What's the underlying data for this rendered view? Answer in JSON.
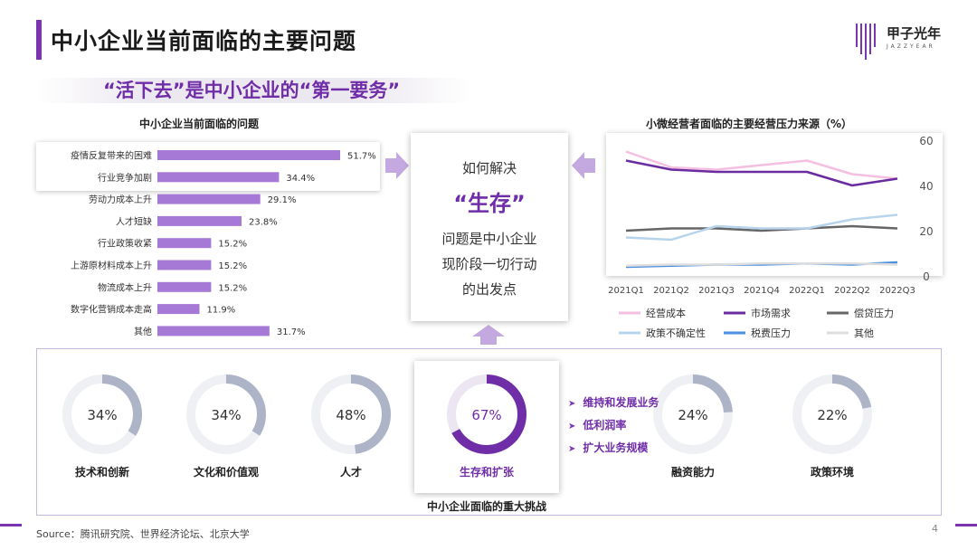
{
  "header": {
    "title": "中小企业当前面临的主要问题",
    "subtitle": "“活下去”是中小企业的“第一要务”",
    "logo_text": "甲子光年",
    "logo_sub": "JAZZYEAR"
  },
  "left_chart": {
    "title": "中小企业当前面临的问题"
  },
  "center": {
    "line1": "如何解决",
    "big": "“生存”",
    "line2": "问题是中小企业",
    "line3": "现阶段一切行动",
    "line4": "的出发点"
  },
  "right_chart": {
    "title": "小微经营者面临的主要经营压力来源（%）"
  },
  "bottom": {
    "caption": "中小企业面临的重大挑战",
    "donuts": [
      {
        "value": 34,
        "text": "34%",
        "label": "技术和创新"
      },
      {
        "value": 34,
        "text": "34%",
        "label": "文化和价值观"
      },
      {
        "value": 48,
        "text": "48%",
        "label": "人才"
      },
      {
        "value": 67,
        "text": "67%",
        "label": "生存和扩张"
      },
      {
        "value": 24,
        "text": "24%",
        "label": "融资能力"
      },
      {
        "value": 22,
        "text": "22%",
        "label": "政策环境"
      }
    ],
    "bullets": [
      "维持和发展业务",
      "低利润率",
      "扩大业务规模"
    ]
  },
  "footer": {
    "source": "Source：腾讯研究院、世界经济论坛、北京大学",
    "page": "4"
  },
  "colors": {
    "accent": "#7b35b0",
    "bar": "#a779d6",
    "donut_gray": "#adb4c8",
    "donut_highlight": "#6f2da8"
  },
  "chart_data": [
    {
      "type": "bar",
      "orientation": "horizontal",
      "title": "中小企业当前面临的问题",
      "categories": [
        "疫情反复带来的困难",
        "行业竞争加剧",
        "劳动力成本上升",
        "人才短缺",
        "行业政策收紧",
        "上游原材料成本上升",
        "物流成本上升",
        "数字化营销成本走高",
        "其他"
      ],
      "values": [
        51.7,
        34.4,
        29.1,
        23.8,
        15.2,
        15.2,
        15.2,
        11.9,
        31.7
      ],
      "value_labels": [
        "51.7%",
        "34.4%",
        "29.1%",
        "23.8%",
        "15.2%",
        "15.2%",
        "15.2%",
        "11.9%",
        "31.7%"
      ]
    },
    {
      "type": "line",
      "title": "小微经营者面临的主要经营压力来源（%）",
      "x": [
        "2021Q1",
        "2021Q2",
        "2021Q3",
        "2021Q4",
        "2022Q1",
        "2022Q2",
        "2022Q3"
      ],
      "y_ticks": [
        "0",
        "20",
        "40",
        "60"
      ],
      "ylim": [
        0,
        60
      ],
      "legend_position": "bottom",
      "series": [
        {
          "name": "经营成本",
          "color": "#f4bfe0",
          "values": [
            55,
            48,
            47,
            49,
            51,
            45,
            43
          ]
        },
        {
          "name": "市场需求",
          "color": "#6a2da0",
          "values": [
            51,
            47,
            46,
            46,
            46,
            40,
            43
          ]
        },
        {
          "name": "偿贷压力",
          "color": "#666666",
          "values": [
            20,
            21,
            21,
            20,
            21,
            22,
            21
          ]
        },
        {
          "name": "政策不确定性",
          "color": "#b8d4ec",
          "values": [
            17,
            16,
            22,
            21,
            21,
            25,
            27
          ]
        },
        {
          "name": "税费压力",
          "color": "#4a8fe0",
          "values": [
            4,
            4.5,
            5,
            5,
            5.5,
            5,
            6
          ]
        },
        {
          "name": "其他",
          "color": "#dddddd",
          "values": [
            4.5,
            5,
            5,
            5.5,
            5.5,
            5.5,
            5
          ]
        }
      ]
    }
  ]
}
